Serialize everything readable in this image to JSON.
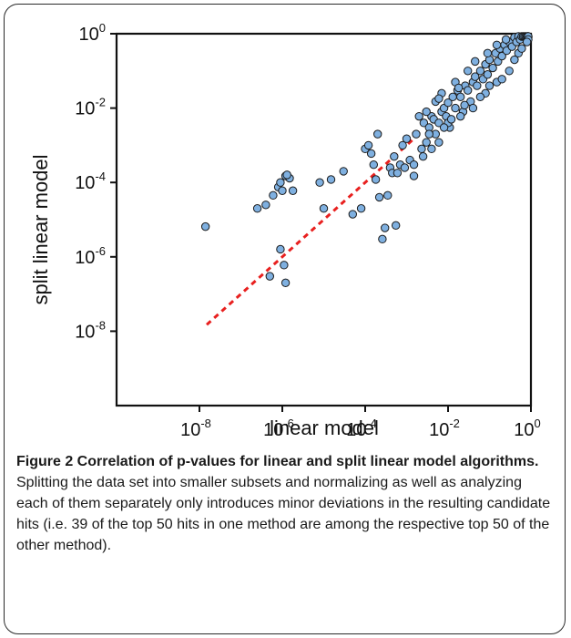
{
  "chart_data": {
    "type": "scatter",
    "title": "",
    "xlabel": "linear model",
    "ylabel": "split linear model",
    "x_scale": "log10",
    "y_scale": "log10",
    "xlim": [
      1e-10,
      1
    ],
    "ylim": [
      1e-10,
      1
    ],
    "x_ticks": [
      {
        "value": 1e-08,
        "base": "10",
        "exp": "-8"
      },
      {
        "value": 1e-06,
        "base": "10",
        "exp": "-6"
      },
      {
        "value": 0.0001,
        "base": "10",
        "exp": "-4"
      },
      {
        "value": 0.01,
        "base": "10",
        "exp": "-2"
      },
      {
        "value": 1,
        "base": "10",
        "exp": "0"
      }
    ],
    "y_ticks": [
      {
        "value": 1,
        "base": "10",
        "exp": "0"
      },
      {
        "value": 0.01,
        "base": "10",
        "exp": "-2"
      },
      {
        "value": 0.0001,
        "base": "10",
        "exp": "-4"
      },
      {
        "value": 1e-06,
        "base": "10",
        "exp": "-6"
      },
      {
        "value": 1e-08,
        "base": "10",
        "exp": "-8"
      }
    ],
    "grid": false,
    "marker_color": "#7fb0e0",
    "marker_edge_color": "#1a1a1a",
    "reference_line": {
      "style": "dashed",
      "color": "#e8201f",
      "x": [
        1.5e-08,
        0.002
      ],
      "y": [
        1.5e-08,
        0.002
      ]
    },
    "points": [
      [
        1.4e-08,
        6.5e-06
      ],
      [
        2.5e-07,
        2e-05
      ],
      [
        4e-07,
        2.5e-05
      ],
      [
        6e-07,
        4.5e-05
      ],
      [
        8e-07,
        7.5e-05
      ],
      [
        9e-07,
        0.0001
      ],
      [
        1e-06,
        6e-05
      ],
      [
        1.2e-06,
        0.00015
      ],
      [
        1.5e-06,
        0.00013
      ],
      [
        1.8e-06,
        6e-05
      ],
      [
        1.3e-06,
        0.00016
      ],
      [
        9e-07,
        1.6e-06
      ],
      [
        1.1e-06,
        6e-07
      ],
      [
        1.2e-06,
        2e-07
      ],
      [
        5e-07,
        3e-07
      ],
      [
        8e-06,
        0.0001
      ],
      [
        1.5e-05,
        0.00012
      ],
      [
        1e-05,
        2e-05
      ],
      [
        3e-05,
        0.0002
      ],
      [
        5e-05,
        1.4e-05
      ],
      [
        8e-05,
        2e-05
      ],
      [
        0.0001,
        0.0008
      ],
      [
        0.00012,
        0.001
      ],
      [
        0.00014,
        0.0006
      ],
      [
        0.00016,
        0.0003
      ],
      [
        0.00018,
        0.00012
      ],
      [
        0.0002,
        0.002
      ],
      [
        0.00022,
        4e-05
      ],
      [
        0.00026,
        3e-06
      ],
      [
        0.0003,
        6e-06
      ],
      [
        0.00035,
        4.5e-05
      ],
      [
        0.0004,
        0.00025
      ],
      [
        0.00045,
        0.00018
      ],
      [
        0.0005,
        0.0005
      ],
      [
        0.00055,
        7e-06
      ],
      [
        0.0006,
        0.00018
      ],
      [
        0.0007,
        0.0003
      ],
      [
        0.0008,
        0.001
      ],
      [
        0.0009,
        0.00025
      ],
      [
        0.001,
        0.0015
      ],
      [
        0.0012,
        0.0004
      ],
      [
        0.0015,
        0.00015
      ],
      [
        0.0017,
        0.002
      ],
      [
        0.002,
        0.006
      ],
      [
        0.0023,
        0.0008
      ],
      [
        0.0026,
        0.004
      ],
      [
        0.003,
        0.0012
      ],
      [
        0.0035,
        0.003
      ],
      [
        0.004,
        0.006
      ],
      [
        0.0045,
        0.005
      ],
      [
        0.005,
        0.002
      ],
      [
        0.006,
        0.004
      ],
      [
        0.007,
        0.008
      ],
      [
        0.008,
        0.01
      ],
      [
        0.009,
        0.006
      ],
      [
        0.01,
        0.014
      ],
      [
        0.011,
        0.003
      ],
      [
        0.013,
        0.02
      ],
      [
        0.015,
        0.01
      ],
      [
        0.017,
        0.03
      ],
      [
        0.02,
        0.02
      ],
      [
        0.023,
        0.008
      ],
      [
        0.026,
        0.04
      ],
      [
        0.03,
        0.03
      ],
      [
        0.035,
        0.015
      ],
      [
        0.04,
        0.05
      ],
      [
        0.045,
        0.07
      ],
      [
        0.05,
        0.04
      ],
      [
        0.06,
        0.1
      ],
      [
        0.07,
        0.06
      ],
      [
        0.08,
        0.15
      ],
      [
        0.09,
        0.08
      ],
      [
        0.1,
        0.2
      ],
      [
        0.12,
        0.12
      ],
      [
        0.14,
        0.3
      ],
      [
        0.16,
        0.18
      ],
      [
        0.18,
        0.4
      ],
      [
        0.2,
        0.25
      ],
      [
        0.23,
        0.5
      ],
      [
        0.26,
        0.35
      ],
      [
        0.3,
        0.6
      ],
      [
        0.35,
        0.45
      ],
      [
        0.4,
        0.8
      ],
      [
        0.45,
        0.6
      ],
      [
        0.5,
        0.9
      ],
      [
        0.55,
        0.7
      ],
      [
        0.6,
        1
      ],
      [
        0.65,
        0.85
      ],
      [
        0.7,
        1
      ],
      [
        0.75,
        0.9
      ],
      [
        0.8,
        1
      ],
      [
        0.85,
        0.95
      ],
      [
        0.9,
        1
      ],
      [
        0.95,
        0.8
      ],
      [
        1,
        1
      ],
      [
        1,
        0.7
      ],
      [
        0.5,
        0.3
      ],
      [
        0.3,
        0.1
      ],
      [
        0.15,
        0.05
      ],
      [
        0.08,
        0.025
      ],
      [
        0.04,
        0.01
      ],
      [
        0.02,
        0.006
      ],
      [
        0.01,
        0.004
      ],
      [
        0.006,
        0.0012
      ],
      [
        0.004,
        0.0008
      ],
      [
        0.0025,
        0.0005
      ],
      [
        0.0015,
        0.0003
      ],
      [
        0.03,
        0.1
      ],
      [
        0.015,
        0.05
      ],
      [
        0.007,
        0.025
      ],
      [
        0.005,
        0.015
      ],
      [
        0.2,
        0.06
      ],
      [
        0.1,
        0.04
      ],
      [
        0.06,
        0.02
      ],
      [
        0.4,
        0.2
      ],
      [
        0.6,
        0.4
      ],
      [
        0.8,
        0.6
      ],
      [
        0.012,
        0.005
      ],
      [
        0.025,
        0.012
      ],
      [
        0.0035,
        0.002
      ],
      [
        0.008,
        0.003
      ],
      [
        0.018,
        0.035
      ],
      [
        0.09,
        0.3
      ],
      [
        0.045,
        0.18
      ],
      [
        0.25,
        0.7
      ],
      [
        0.15,
        0.5
      ],
      [
        0.003,
        0.008
      ],
      [
        0.006,
        0.018
      ]
    ]
  },
  "caption": {
    "title": "Figure 2 Correlation of p-values for linear and split linear model algorithms.",
    "body": "Splitting the data set into smaller subsets and normalizing as well as analyzing each of them separately only introduces minor deviations in the resulting candidate hits (i.e. 39 of the top 50 hits in one method are among the respective top 50 of the other method)."
  }
}
